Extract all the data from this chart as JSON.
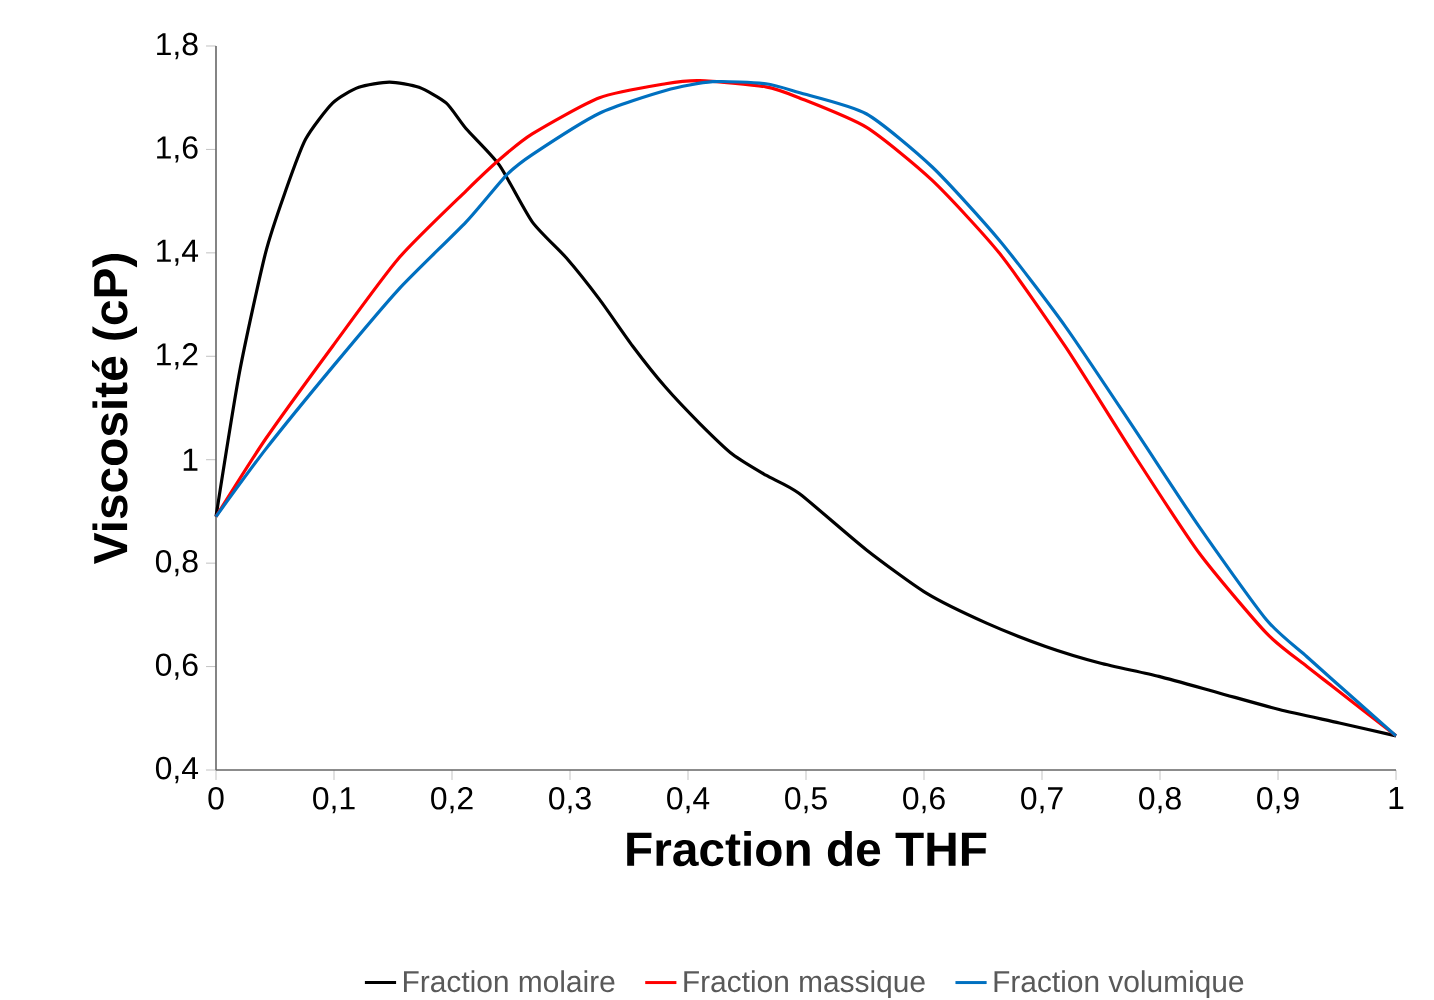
{
  "chart_data": {
    "type": "line",
    "xlabel": "Fraction de THF",
    "ylabel": "Viscosité (cP)",
    "xlim": [
      0,
      1
    ],
    "ylim": [
      0.4,
      1.8
    ],
    "xticks": [
      0,
      {
        "value": 0.1,
        "label": "0,1"
      },
      {
        "value": 0.2,
        "label": "0,2"
      },
      {
        "value": 0.3,
        "label": "0,3"
      },
      {
        "value": 0.4,
        "label": "0,4"
      },
      {
        "value": 0.5,
        "label": "0,5"
      },
      {
        "value": 0.6,
        "label": "0,6"
      },
      {
        "value": 0.7,
        "label": "0,7"
      },
      {
        "value": 0.8,
        "label": "0,8"
      },
      {
        "value": 0.9,
        "label": "0,9"
      },
      1
    ],
    "yticks": [
      {
        "value": 0.4,
        "label": "0,4"
      },
      {
        "value": 0.6,
        "label": "0,6"
      },
      {
        "value": 0.8,
        "label": "0,8"
      },
      1,
      {
        "value": 1.2,
        "label": "1,2"
      },
      {
        "value": 1.4,
        "label": "1,4"
      },
      {
        "value": 1.6,
        "label": "1,6"
      },
      {
        "value": 1.8,
        "label": "1,8"
      }
    ],
    "grid": false,
    "legend": "bottom",
    "marker": "none",
    "line_style": "solid",
    "series": [
      {
        "name": "Fraction molaire",
        "color": "#000000",
        "x": [
          0,
          0.02,
          0.042,
          0.059,
          0.076,
          0.099,
          0.121,
          0.147,
          0.172,
          0.195,
          0.212,
          0.24,
          0.268,
          0.297,
          0.325,
          0.353,
          0.381,
          0.41,
          0.438,
          0.466,
          0.494,
          0.551,
          0.602,
          0.653,
          0.703,
          0.749,
          0.799,
          0.85,
          0.901,
          0.952,
          1.0
        ],
        "values": [
          0.89,
          1.17,
          1.4,
          1.52,
          1.62,
          1.69,
          1.72,
          1.73,
          1.72,
          1.69,
          1.64,
          1.57,
          1.46,
          1.39,
          1.31,
          1.22,
          1.14,
          1.07,
          1.01,
          0.97,
          0.935,
          0.826,
          0.742,
          0.684,
          0.639,
          0.607,
          0.581,
          0.549,
          0.517,
          0.491,
          0.466
        ]
      },
      {
        "name": "Fraction massique",
        "color": "#ff0000",
        "x": [
          0,
          0.042,
          0.099,
          0.155,
          0.212,
          0.24,
          0.268,
          0.325,
          0.381,
          0.41,
          0.466,
          0.494,
          0.551,
          0.607,
          0.664,
          0.72,
          0.777,
          0.833,
          0.89,
          0.924,
          0.946,
          1.0
        ],
        "values": [
          0.89,
          1.04,
          1.22,
          1.39,
          1.52,
          1.58,
          1.63,
          1.7,
          1.727,
          1.733,
          1.721,
          1.7,
          1.643,
          1.54,
          1.399,
          1.218,
          1.013,
          0.82,
          0.665,
          0.601,
          0.562,
          0.466
        ]
      },
      {
        "name": "Fraction volumique",
        "color": "#0070c0",
        "x": [
          0,
          0.042,
          0.099,
          0.155,
          0.212,
          0.246,
          0.268,
          0.325,
          0.381,
          0.421,
          0.466,
          0.494,
          0.551,
          0.607,
          0.664,
          0.72,
          0.777,
          0.833,
          0.89,
          0.924,
          0.946,
          1.0
        ],
        "values": [
          0.89,
          1.02,
          1.18,
          1.33,
          1.46,
          1.55,
          1.59,
          1.67,
          1.714,
          1.731,
          1.727,
          1.71,
          1.669,
          1.566,
          1.424,
          1.257,
          1.064,
          0.871,
          0.691,
          0.62,
          0.575,
          0.466
        ]
      }
    ]
  }
}
